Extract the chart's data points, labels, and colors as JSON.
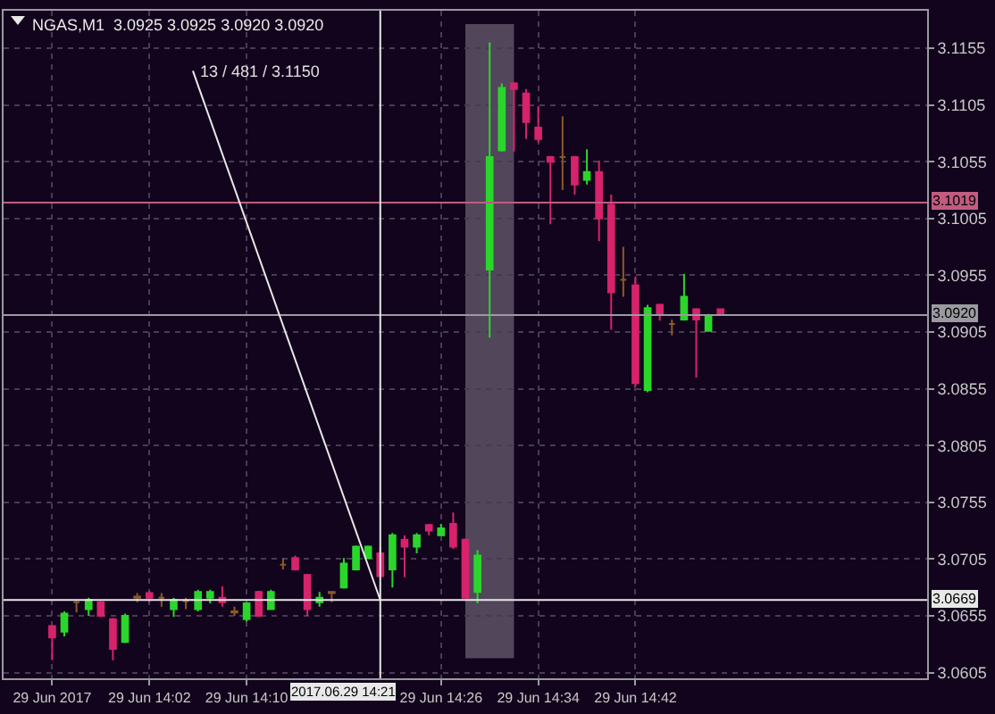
{
  "chart_data": {
    "type": "candlestick",
    "title": "NGAS,M1  3.0925 3.0925 3.0920 3.0920",
    "x": [
      "2017-06-29T13:54",
      "2017-06-29T13:55",
      "2017-06-29T13:56",
      "2017-06-29T13:57",
      "2017-06-29T13:58",
      "2017-06-29T13:59",
      "2017-06-29T14:00",
      "2017-06-29T14:01",
      "2017-06-29T14:02",
      "2017-06-29T14:03",
      "2017-06-29T14:04",
      "2017-06-29T14:05",
      "2017-06-29T14:06",
      "2017-06-29T14:07",
      "2017-06-29T14:08",
      "2017-06-29T14:09",
      "2017-06-29T14:10",
      "2017-06-29T14:11",
      "2017-06-29T14:12",
      "2017-06-29T14:13",
      "2017-06-29T14:14",
      "2017-06-29T14:15",
      "2017-06-29T14:16",
      "2017-06-29T14:17",
      "2017-06-29T14:18",
      "2017-06-29T14:19",
      "2017-06-29T14:20",
      "2017-06-29T14:21",
      "2017-06-29T14:22",
      "2017-06-29T14:23",
      "2017-06-29T14:24",
      "2017-06-29T14:25",
      "2017-06-29T14:26",
      "2017-06-29T14:27",
      "2017-06-29T14:28",
      "2017-06-29T14:29",
      "2017-06-29T14:30",
      "2017-06-29T14:31",
      "2017-06-29T14:32",
      "2017-06-29T14:33",
      "2017-06-29T14:34",
      "2017-06-29T14:35",
      "2017-06-29T14:36",
      "2017-06-29T14:37",
      "2017-06-29T14:38",
      "2017-06-29T14:39",
      "2017-06-29T14:40",
      "2017-06-29T14:41",
      "2017-06-29T14:42",
      "2017-06-29T14:43",
      "2017-06-29T14:44",
      "2017-06-29T14:45",
      "2017-06-29T14:46",
      "2017-06-29T14:47",
      "2017-06-29T14:48",
      "2017-06-29T14:49"
    ],
    "ohlc": [
      [
        3.0646,
        3.0647,
        3.0616,
        3.0636
      ],
      [
        3.0641,
        3.0659,
        3.0637,
        3.0657
      ],
      [
        3.0667,
        3.0668,
        3.0658,
        3.0667
      ],
      [
        3.0661,
        3.0671,
        3.0655,
        3.0669
      ],
      [
        3.0667,
        3.0668,
        3.0654,
        3.0655
      ],
      [
        3.0652,
        3.0653,
        3.0616,
        3.0626
      ],
      [
        3.0632,
        3.0657,
        3.0631,
        3.0655
      ],
      [
        3.0671,
        3.0675,
        3.0667,
        3.0672
      ],
      [
        3.0675,
        3.0677,
        3.0667,
        3.0671
      ],
      [
        3.0671,
        3.0675,
        3.0663,
        3.0671
      ],
      [
        3.0661,
        3.0671,
        3.0654,
        3.0669
      ],
      [
        3.0668,
        3.0671,
        3.0661,
        3.0668
      ],
      [
        3.0661,
        3.0678,
        3.0659,
        3.0676
      ],
      [
        3.0671,
        3.0678,
        3.0666,
        3.0676
      ],
      [
        3.0671,
        3.0681,
        3.0663,
        3.0667
      ],
      [
        3.0658,
        3.0663,
        3.0655,
        3.0659
      ],
      [
        3.0652,
        3.0667,
        3.065,
        3.0666
      ],
      [
        3.0676,
        3.0677,
        3.0654,
        3.0655
      ],
      [
        3.0661,
        3.0678,
        3.0661,
        3.0676
      ],
      [
        3.07,
        3.0706,
        3.0696,
        3.07
      ],
      [
        3.0706,
        3.0708,
        3.0695,
        3.0696
      ],
      [
        3.0691,
        3.0692,
        3.0655,
        3.0661
      ],
      [
        3.0667,
        3.0676,
        3.0663,
        3.0671
      ],
      [
        3.0675,
        3.0676,
        3.0667,
        3.0676
      ],
      [
        3.068,
        3.0706,
        3.0679,
        3.0701
      ],
      [
        3.0696,
        3.0717,
        3.0695,
        3.0716
      ],
      [
        3.0706,
        3.0717,
        3.0705,
        3.0716
      ],
      [
        3.071,
        3.0716,
        3.0688,
        3.069
      ],
      [
        3.0696,
        3.0728,
        3.068,
        3.0726
      ],
      [
        3.0722,
        3.0726,
        3.0689,
        3.0716
      ],
      [
        3.0716,
        3.0728,
        3.071,
        3.0726
      ],
      [
        3.0735,
        3.0736,
        3.0726,
        3.073
      ],
      [
        3.0726,
        3.0736,
        3.0726,
        3.0732
      ],
      [
        3.0736,
        3.0746,
        3.0714,
        3.0716
      ],
      [
        3.0722,
        3.0723,
        3.0671,
        3.0671
      ],
      [
        3.0676,
        3.0713,
        3.0666,
        3.0708
      ],
      [
        3.096,
        3.116,
        3.09,
        3.1059
      ],
      [
        3.1065,
        3.1124,
        3.1064,
        3.112
      ],
      [
        3.1124,
        3.1125,
        3.1064,
        3.1119
      ],
      [
        3.1115,
        3.1119,
        3.1075,
        3.109
      ],
      [
        3.1085,
        3.1104,
        3.1072,
        3.1075
      ],
      [
        3.1059,
        3.106,
        3.1,
        3.1055
      ],
      [
        3.1059,
        3.1095,
        3.103,
        3.1059
      ],
      [
        3.1059,
        3.106,
        3.1026,
        3.1035
      ],
      [
        3.1039,
        3.1066,
        3.1035,
        3.1046
      ],
      [
        3.1046,
        3.1056,
        3.0985,
        3.1005
      ],
      [
        3.1017,
        3.1026,
        3.0907,
        3.094
      ],
      [
        3.0951,
        3.098,
        3.0936,
        3.0951
      ],
      [
        3.0946,
        3.0954,
        3.0857,
        3.086
      ],
      [
        3.0854,
        3.0929,
        3.0852,
        3.0926
      ],
      [
        3.0929,
        3.093,
        3.0915,
        3.092
      ],
      [
        3.0912,
        3.0916,
        3.0902,
        3.0912
      ],
      [
        3.0916,
        3.0956,
        3.0915,
        3.0936
      ],
      [
        3.0925,
        3.0926,
        3.0865,
        3.0916
      ],
      [
        3.0906,
        3.0921,
        3.0906,
        3.092
      ],
      [
        3.0925,
        3.0925,
        3.092,
        3.092
      ]
    ],
    "colors": [
      "#d6236b",
      "#2bd62b",
      "#8a5a2a",
      "#2bd62b",
      "#d6236b",
      "#d6236b",
      "#2bd62b",
      "#8a5a2a",
      "#d6236b",
      "#8a5a2a",
      "#2bd62b",
      "#8a5a2a",
      "#2bd62b",
      "#2bd62b",
      "#d6236b",
      "#8a5a2a",
      "#2bd62b",
      "#d6236b",
      "#2bd62b",
      "#8a5a2a",
      "#d6236b",
      "#d6236b",
      "#2bd62b",
      "#8a5a2a",
      "#2bd62b",
      "#2bd62b",
      "#2bd62b",
      "#d6236b",
      "#2bd62b",
      "#d6236b",
      "#2bd62b",
      "#d6236b",
      "#2bd62b",
      "#d6236b",
      "#d6236b",
      "#2bd62b",
      "#2bd62b",
      "#2bd62b",
      "#d6236b",
      "#d6236b",
      "#d6236b",
      "#d6236b",
      "#8a5a2a",
      "#d6236b",
      "#2bd62b",
      "#d6236b",
      "#d6236b",
      "#8a5a2a",
      "#d6236b",
      "#2bd62b",
      "#d6236b",
      "#8a5a2a",
      "#2bd62b",
      "#d6236b",
      "#2bd62b",
      "#d6236b"
    ],
    "xlim": [
      "2017-06-29T13:50",
      "2017-06-29T15:06"
    ],
    "xticks": [
      {
        "value": "2017-06-29T13:54",
        "label": "29 Jun 2017"
      },
      {
        "value": "2017-06-29T14:02",
        "label": "29 Jun 14:02"
      },
      {
        "value": "2017-06-29T14:10",
        "label": "29 Jun 14:10"
      },
      {
        "value": "2017-06-29T14:26",
        "label": "29 Jun 14:26"
      },
      {
        "value": "2017-06-29T14:34",
        "label": "29 Jun 14:34"
      },
      {
        "value": "2017-06-29T14:42",
        "label": "29 Jun 14:42"
      }
    ],
    "ylim": [
      3.06,
      3.1188
    ],
    "yticks": [
      3.0605,
      3.0655,
      3.0705,
      3.0755,
      3.0805,
      3.0855,
      3.0905,
      3.0955,
      3.1005,
      3.1055,
      3.1105,
      3.1155
    ],
    "grid": true,
    "ref_lines": [
      {
        "axis": "y",
        "value": 3.1019,
        "label": "3.1019",
        "color": "#c05c80"
      },
      {
        "axis": "y",
        "value": 3.092,
        "label": "3.0920",
        "color": "#9a9aa0"
      },
      {
        "axis": "y",
        "value": 3.0669,
        "label": "3.0669",
        "color": "#e8e8e8"
      },
      {
        "axis": "x",
        "value": "2017-06-29T14:21",
        "label": "2017.06.29 14:21",
        "color": "#e8e8e8"
      }
    ],
    "bands": [
      {
        "axis": "x",
        "from": "2017-06-29T14:28",
        "to": "2017-06-29T14:32",
        "color": "#5e5266"
      }
    ],
    "annotations": [
      "13 / 481 / 3.1150"
    ]
  }
}
